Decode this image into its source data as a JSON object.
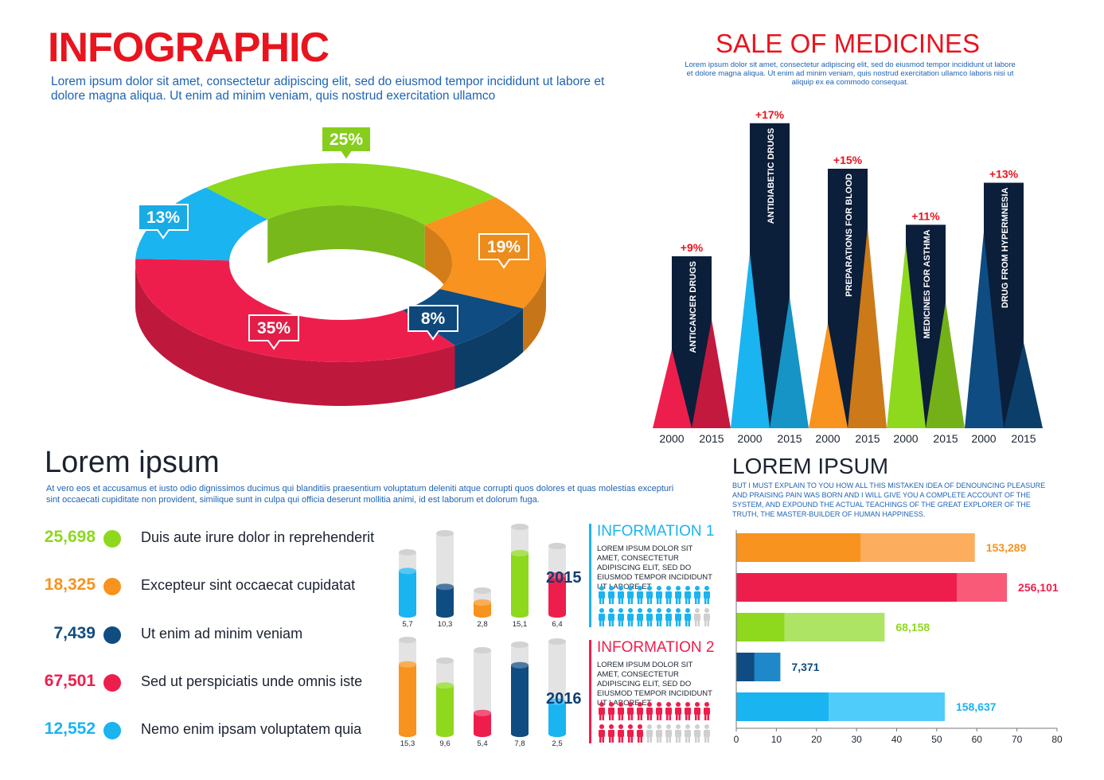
{
  "header": {
    "title": "INFOGRAPHIC",
    "intro": "Lorem ipsum dolor sit amet, consectetur adipiscing elit, sed do eiusmod tempor incididunt ut labore et dolore magna aliqua. Ut enim ad minim veniam, quis nostrud exercitation ullamco"
  },
  "sale": {
    "title": "SALE OF MEDICINES",
    "desc": "Lorem ipsum dolor sit amet, consectetur adipiscing elit, sed do eiusmod tempor incididunt ut labore et dolore magna aliqua. Ut enim ad minim veniam, quis nostrud exercitation ullamco laboris nisi ut aliquip ex ea commodo consequat."
  },
  "section2": {
    "title": "Lorem ipsum",
    "desc": "At vero eos et accusamus et iusto odio dignissimos ducimus qui blanditiis praesentium voluptatum deleniti atque corrupti quos dolores et quas molestias excepturi sint occaecati cupiditate non provident, similique sunt in culpa qui officia deserunt mollitia animi, id est laborum et dolorum fuga."
  },
  "section3": {
    "title": "LOREM IPSUM",
    "desc": "But I must explain to you how all this mistaken idea of denouncing pleasure and praising pain was born and I will give you a complete account of the system, and expound the actual teachings of the great explorer of the truth, the master-builder of human happiness."
  },
  "stats": [
    {
      "value": "25,698",
      "label": "Duis aute irure dolor in reprehenderit",
      "color": "#8ed81e"
    },
    {
      "value": "18,325",
      "label": "Excepteur sint occaecat cupidatat",
      "color": "#f7931e"
    },
    {
      "value": "7,439",
      "label": "Ut enim ad minim veniam",
      "color": "#0f4c81"
    },
    {
      "value": "67,501",
      "label": "Sed ut perspiciatis unde omnis iste",
      "color": "#ee1e4c"
    },
    {
      "value": "12,552",
      "label": "Nemo enim ipsam voluptatem quia",
      "color": "#1ab4f0"
    }
  ],
  "info": [
    {
      "title": "INFORMATION 1",
      "text": "Lorem ipsum dolor sit amet, consectetur adipiscing elit, sed do eiusmod tempor incididunt ut labore et",
      "color": "#1ab4f0",
      "filled": 22,
      "total": 24
    },
    {
      "title": "INFORMATION 2",
      "text": "Lorem ipsum dolor sit amet, consectetur adipiscing elit, sed do eiusmod tempor incididunt ut labore et",
      "color": "#ee1e4c",
      "filled": 17,
      "total": 24
    }
  ],
  "chart_data": [
    {
      "type": "pie",
      "variant": "3d-donut",
      "slices": [
        {
          "label": "25%",
          "value": 25,
          "color": "#8ed81e"
        },
        {
          "label": "19%",
          "value": 19,
          "color": "#f7931e"
        },
        {
          "label": "8%",
          "value": 8,
          "color": "#0f4c81"
        },
        {
          "label": "35%",
          "value": 35,
          "color": "#ee1e4c"
        },
        {
          "label": "13%",
          "value": 13,
          "color": "#1ab4f0"
        }
      ]
    },
    {
      "type": "bar",
      "variant": "triangle-peaks",
      "groups": [
        {
          "name": "ANTICANCER DRUGS",
          "change": "+9%",
          "v2000": 45,
          "v2015": 62,
          "bar": 100,
          "color": "#ee1e4c"
        },
        {
          "name": "ANTIDIABETIC DRUGS",
          "change": "+17%",
          "v2000": 100,
          "v2015": 75,
          "bar": 176,
          "color": "#1ab4f0"
        },
        {
          "name": "PREPARATIONS FOR BLOOD",
          "change": "+15%",
          "v2000": 60,
          "v2015": 115,
          "bar": 150,
          "color": "#f7931e"
        },
        {
          "name": "MEDICINES FOR ASTHMA",
          "change": "+11%",
          "v2000": 105,
          "v2015": 72,
          "bar": 118,
          "color": "#8ed81e"
        },
        {
          "name": "DRUG FROM HYPERMNESIA",
          "change": "+13%",
          "v2000": 112,
          "v2015": 49,
          "bar": 142,
          "color": "#0f4c81"
        }
      ],
      "xlabels": [
        "2000",
        "2015"
      ]
    },
    {
      "type": "bar",
      "variant": "cylinders",
      "series": [
        {
          "name": "2015",
          "values": [
            {
              "label": "5,7",
              "fill": 0.7,
              "color": "#1ab4f0"
            },
            {
              "label": "10,3",
              "fill": 0.34,
              "color": "#0f4c81"
            },
            {
              "label": "2,8",
              "fill": 0.5,
              "color": "#f7931e"
            },
            {
              "label": "15,1",
              "fill": 0.7,
              "color": "#8ed81e"
            },
            {
              "label": "6,4",
              "fill": 0.57,
              "color": "#ee1e4c"
            }
          ]
        },
        {
          "name": "2016",
          "values": [
            {
              "label": "15,3",
              "fill": 0.74,
              "color": "#f7931e"
            },
            {
              "label": "9,6",
              "fill": 0.66,
              "color": "#8ed81e"
            },
            {
              "label": "5,4",
              "fill": 0.25,
              "color": "#ee1e4c"
            },
            {
              "label": "7,8",
              "fill": 0.77,
              "color": "#0f4c81"
            },
            {
              "label": "2,5",
              "fill": 0.35,
              "color": "#1ab4f0"
            }
          ]
        }
      ]
    },
    {
      "type": "bar",
      "orientation": "horizontal",
      "xlim": [
        0,
        80
      ],
      "xticks": [
        0,
        10,
        20,
        30,
        40,
        50,
        60,
        70,
        80
      ],
      "bars": [
        {
          "label": "153,289",
          "value": 59.5,
          "inner": 31,
          "color": "#f7931e",
          "light": "#fcae5e"
        },
        {
          "label": "256,101",
          "value": 67.5,
          "inner": 55,
          "color": "#ee1e4c",
          "light": "#f85a78"
        },
        {
          "label": "68,158",
          "value": 37,
          "inner": 12,
          "color": "#8ed81e",
          "light": "#aee464"
        },
        {
          "label": "7,371",
          "value": 11,
          "inner": 4.5,
          "color": "#0f4c81",
          "light": "#1e88c8"
        },
        {
          "label": "158,637",
          "value": 52,
          "inner": 23,
          "color": "#1ab4f0",
          "light": "#50ccfa"
        }
      ]
    }
  ]
}
